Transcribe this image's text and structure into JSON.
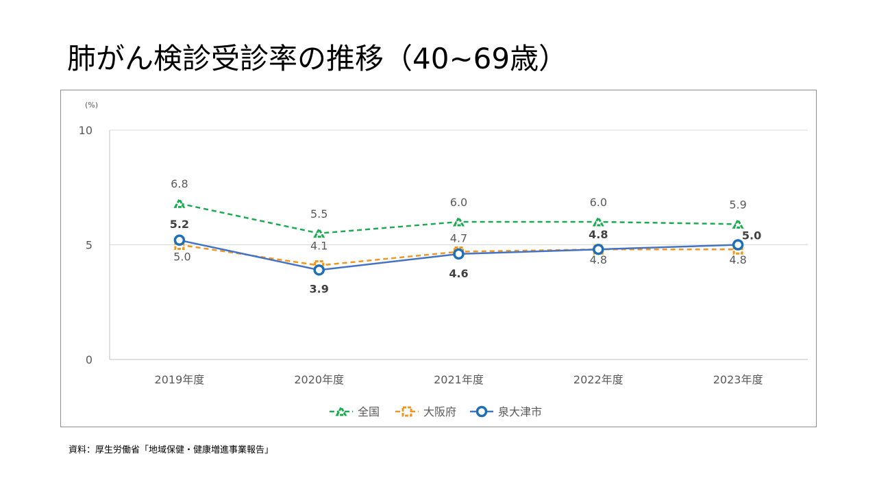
{
  "page": {
    "title": "肺がん検診受診率の推移（40~69歳）",
    "source": "資料：厚生労働省「地域保健・健康増進事業報告」"
  },
  "colors": {
    "national": "#1aab50",
    "osaka": "#f0961e",
    "izumiotsu": "#4472c4",
    "izumiotsu_marker": "#1f6fb5"
  },
  "chart_data": {
    "type": "line",
    "y_unit_label": "(%)",
    "ylim": [
      0,
      10
    ],
    "yticks": [
      0,
      5,
      10
    ],
    "grid": true,
    "legend_position": "bottom",
    "categories": [
      "2019年度",
      "2020年度",
      "2021年度",
      "2022年度",
      "2023年度"
    ],
    "series": [
      {
        "name": "全国",
        "values": [
          6.8,
          5.5,
          6.0,
          6.0,
          5.9
        ],
        "labels": [
          "6.8",
          "5.5",
          "6.0",
          "6.0",
          "5.9"
        ],
        "style": "dashed",
        "marker": "triangle",
        "color": "#1aab50"
      },
      {
        "name": "大阪府",
        "values": [
          5.0,
          4.1,
          4.7,
          4.8,
          4.8
        ],
        "labels": [
          "5.0",
          "4.1",
          "4.7",
          "4.8",
          "4.8"
        ],
        "style": "dashed",
        "marker": "square",
        "color": "#f0961e"
      },
      {
        "name": "泉大津市",
        "values": [
          5.2,
          3.9,
          4.6,
          4.8,
          5.0
        ],
        "labels": [
          "5.2",
          "3.9",
          "4.6",
          "4.8",
          "5.0"
        ],
        "style": "solid",
        "marker": "circle",
        "color": "#4472c4"
      }
    ]
  }
}
